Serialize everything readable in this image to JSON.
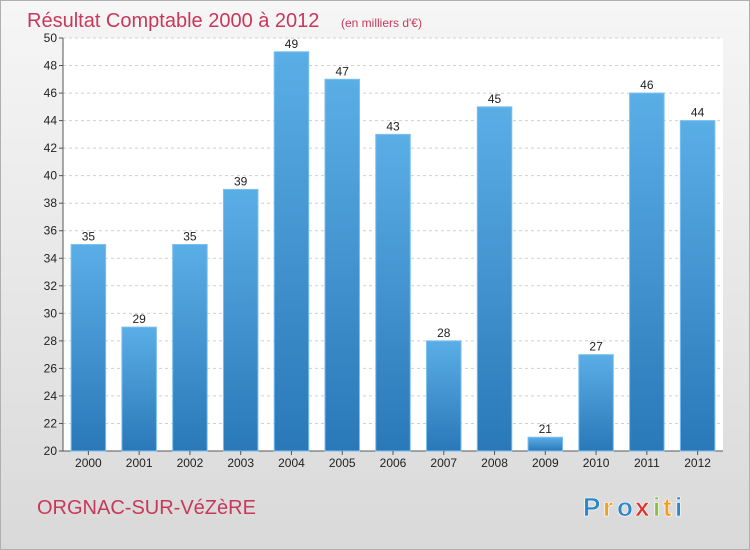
{
  "chart_data": {
    "type": "bar",
    "title": "Résultat Comptable 2000 à 2012",
    "subtitle": "(en milliers d'€)",
    "categories": [
      "2000",
      "2001",
      "2002",
      "2003",
      "2004",
      "2005",
      "2006",
      "2007",
      "2008",
      "2009",
      "2010",
      "2011",
      "2012"
    ],
    "values": [
      35,
      29,
      35,
      39,
      49,
      47,
      43,
      28,
      45,
      21,
      27,
      46,
      44
    ],
    "value_labels": [
      "35",
      "29",
      "35",
      "39",
      "49",
      "47",
      "43",
      "28",
      "45",
      "21",
      "27",
      "46",
      "44"
    ],
    "yticks": [
      "20",
      "22",
      "24",
      "26",
      "28",
      "30",
      "32",
      "34",
      "36",
      "38",
      "40",
      "42",
      "44",
      "46",
      "48",
      "50"
    ],
    "ylim": [
      20,
      50
    ],
    "xlabel": "",
    "ylabel": "",
    "grid": true,
    "bar_color": "#3a8fd4"
  },
  "footer": {
    "commune": "ORGNAC-SUR-VéZèRE",
    "brand": "Proxiti",
    "brand_letters": [
      "P",
      "r",
      "o",
      "x",
      "i",
      "t",
      "i"
    ],
    "brand_colors": [
      "#2e86c8",
      "#f0a020",
      "#2e86c8",
      "#e03030",
      "#8ac040",
      "#f0a020",
      "#2e86c8"
    ]
  }
}
